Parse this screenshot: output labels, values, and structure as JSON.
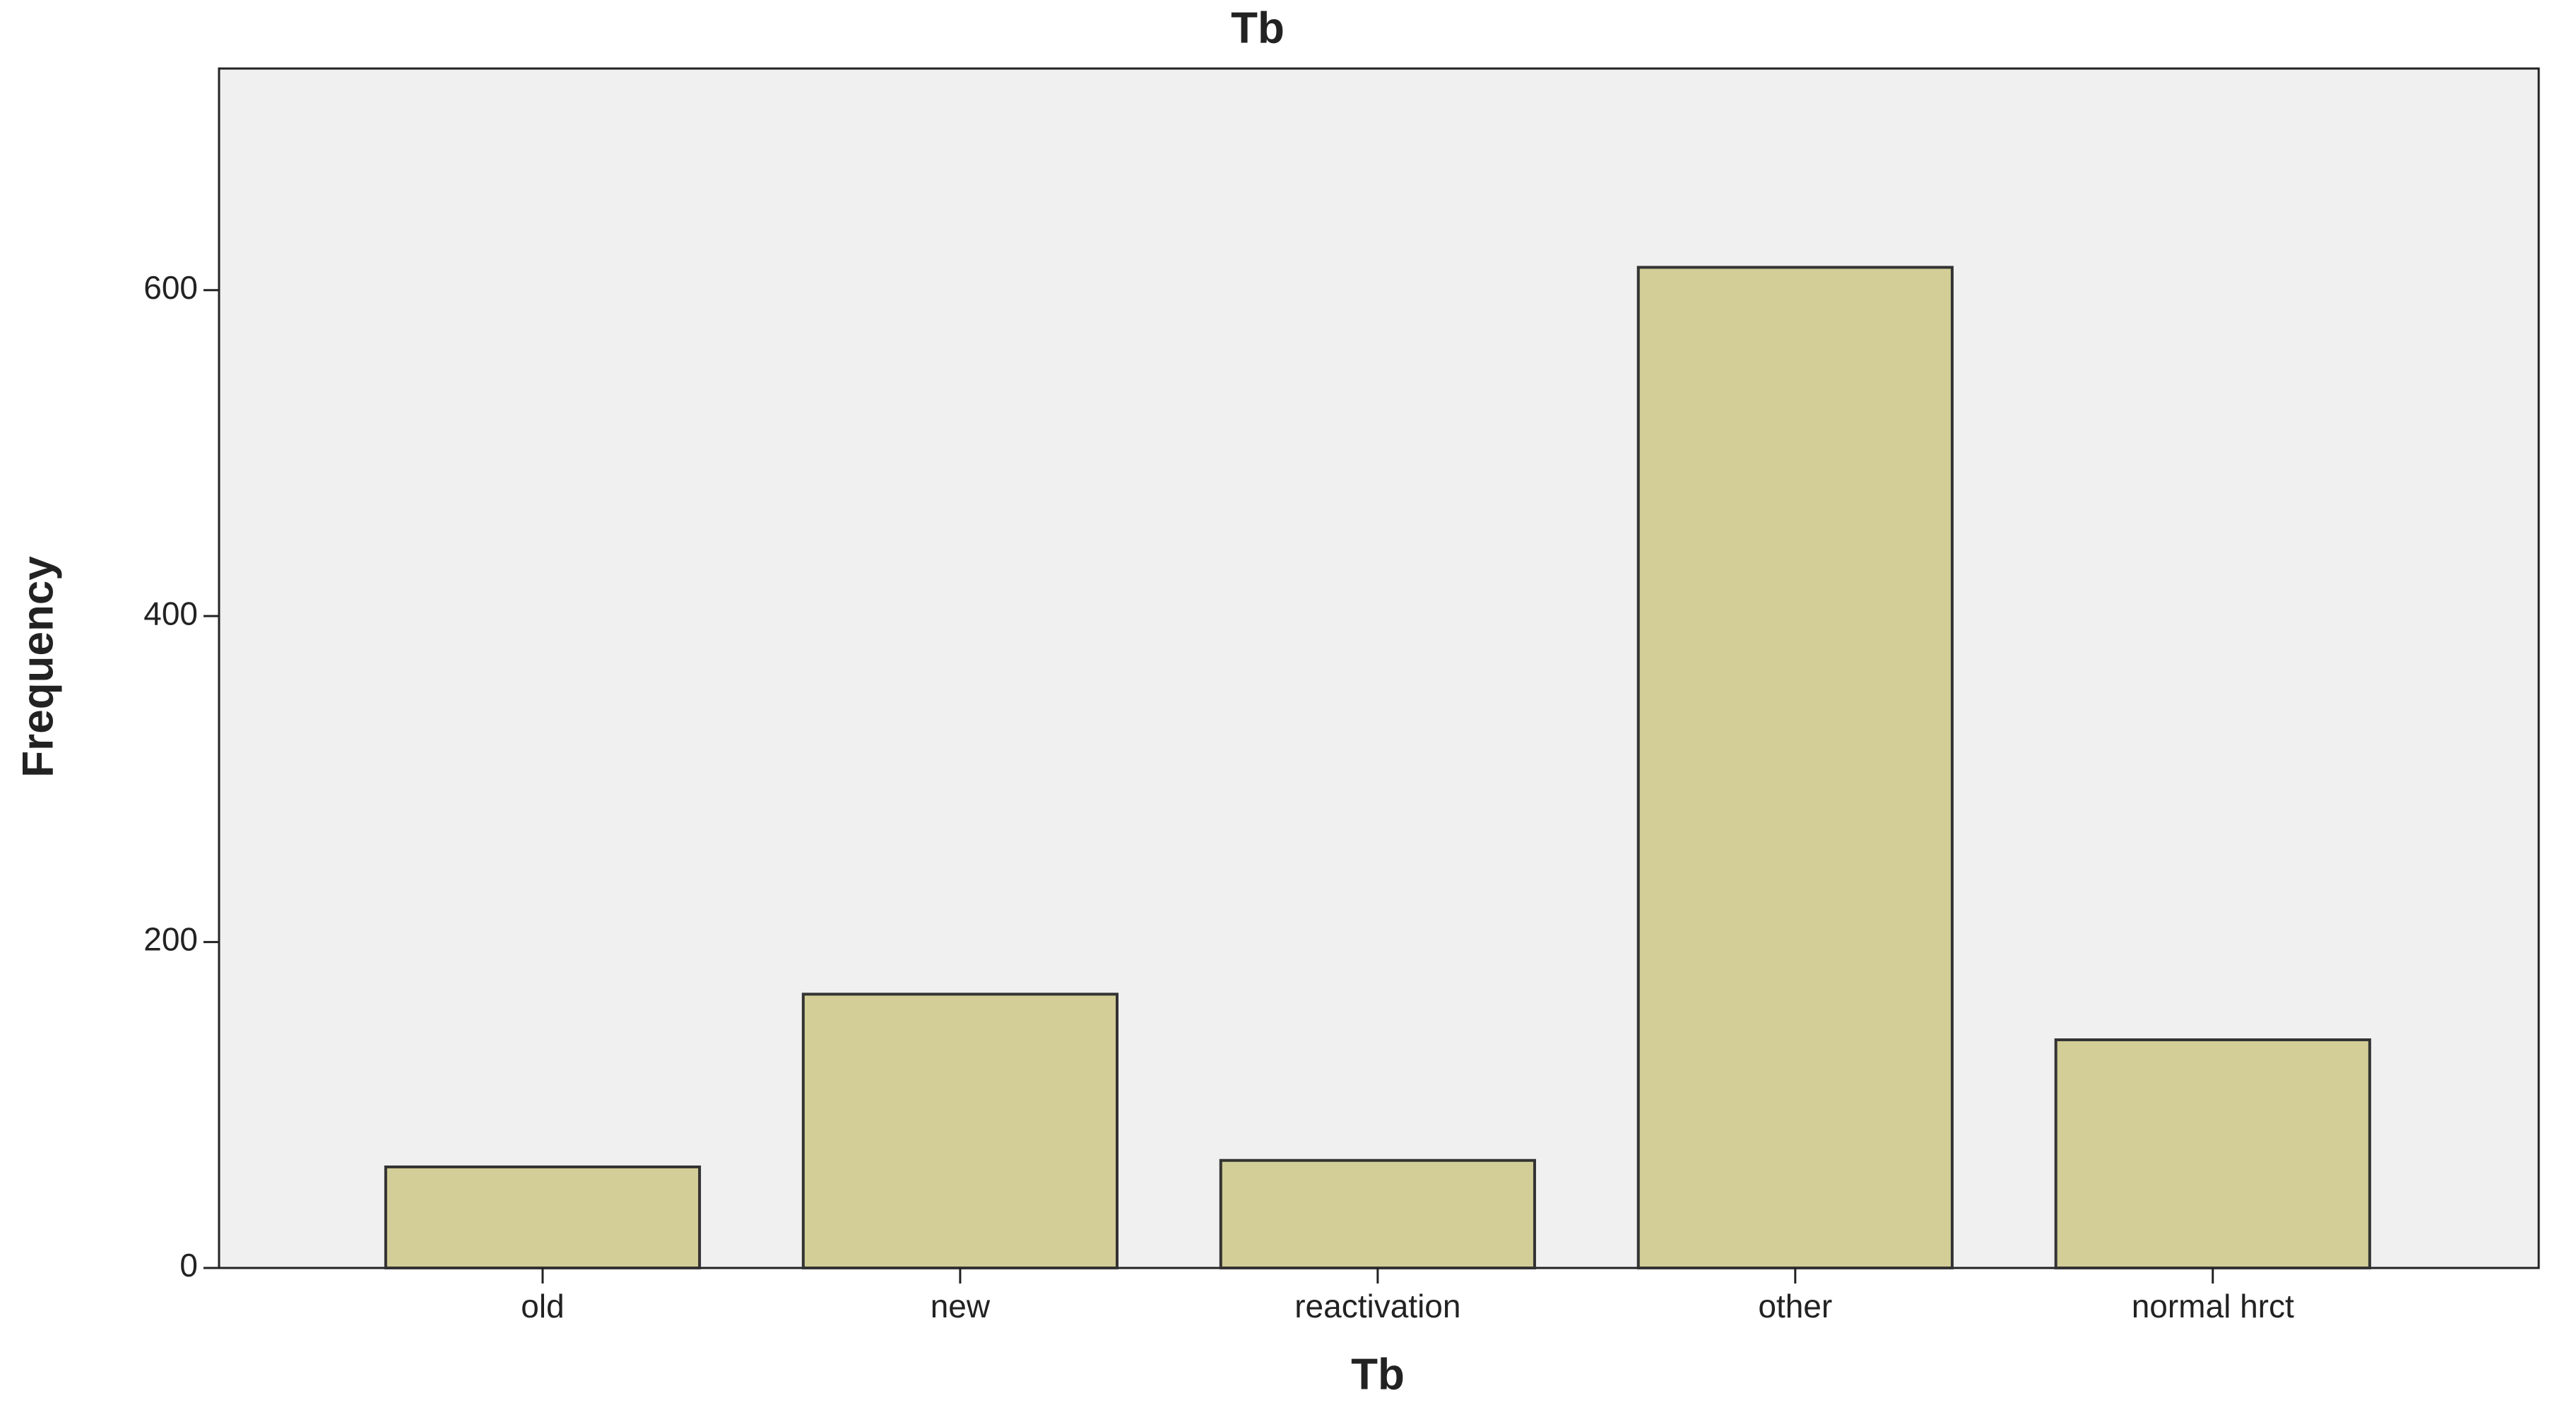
{
  "chart_data": {
    "type": "bar",
    "title": "Tb",
    "x_label": "Tb",
    "y_label": "Frequency",
    "categories": [
      "old",
      "new",
      "reactivation",
      "other",
      "normal hrct"
    ],
    "values": [
      62,
      168,
      66,
      614,
      140
    ],
    "color": "#d3ce97",
    "ylim": [
      0,
      736
    ],
    "yticks": [
      0,
      200,
      400,
      600
    ],
    "grid": false
  }
}
